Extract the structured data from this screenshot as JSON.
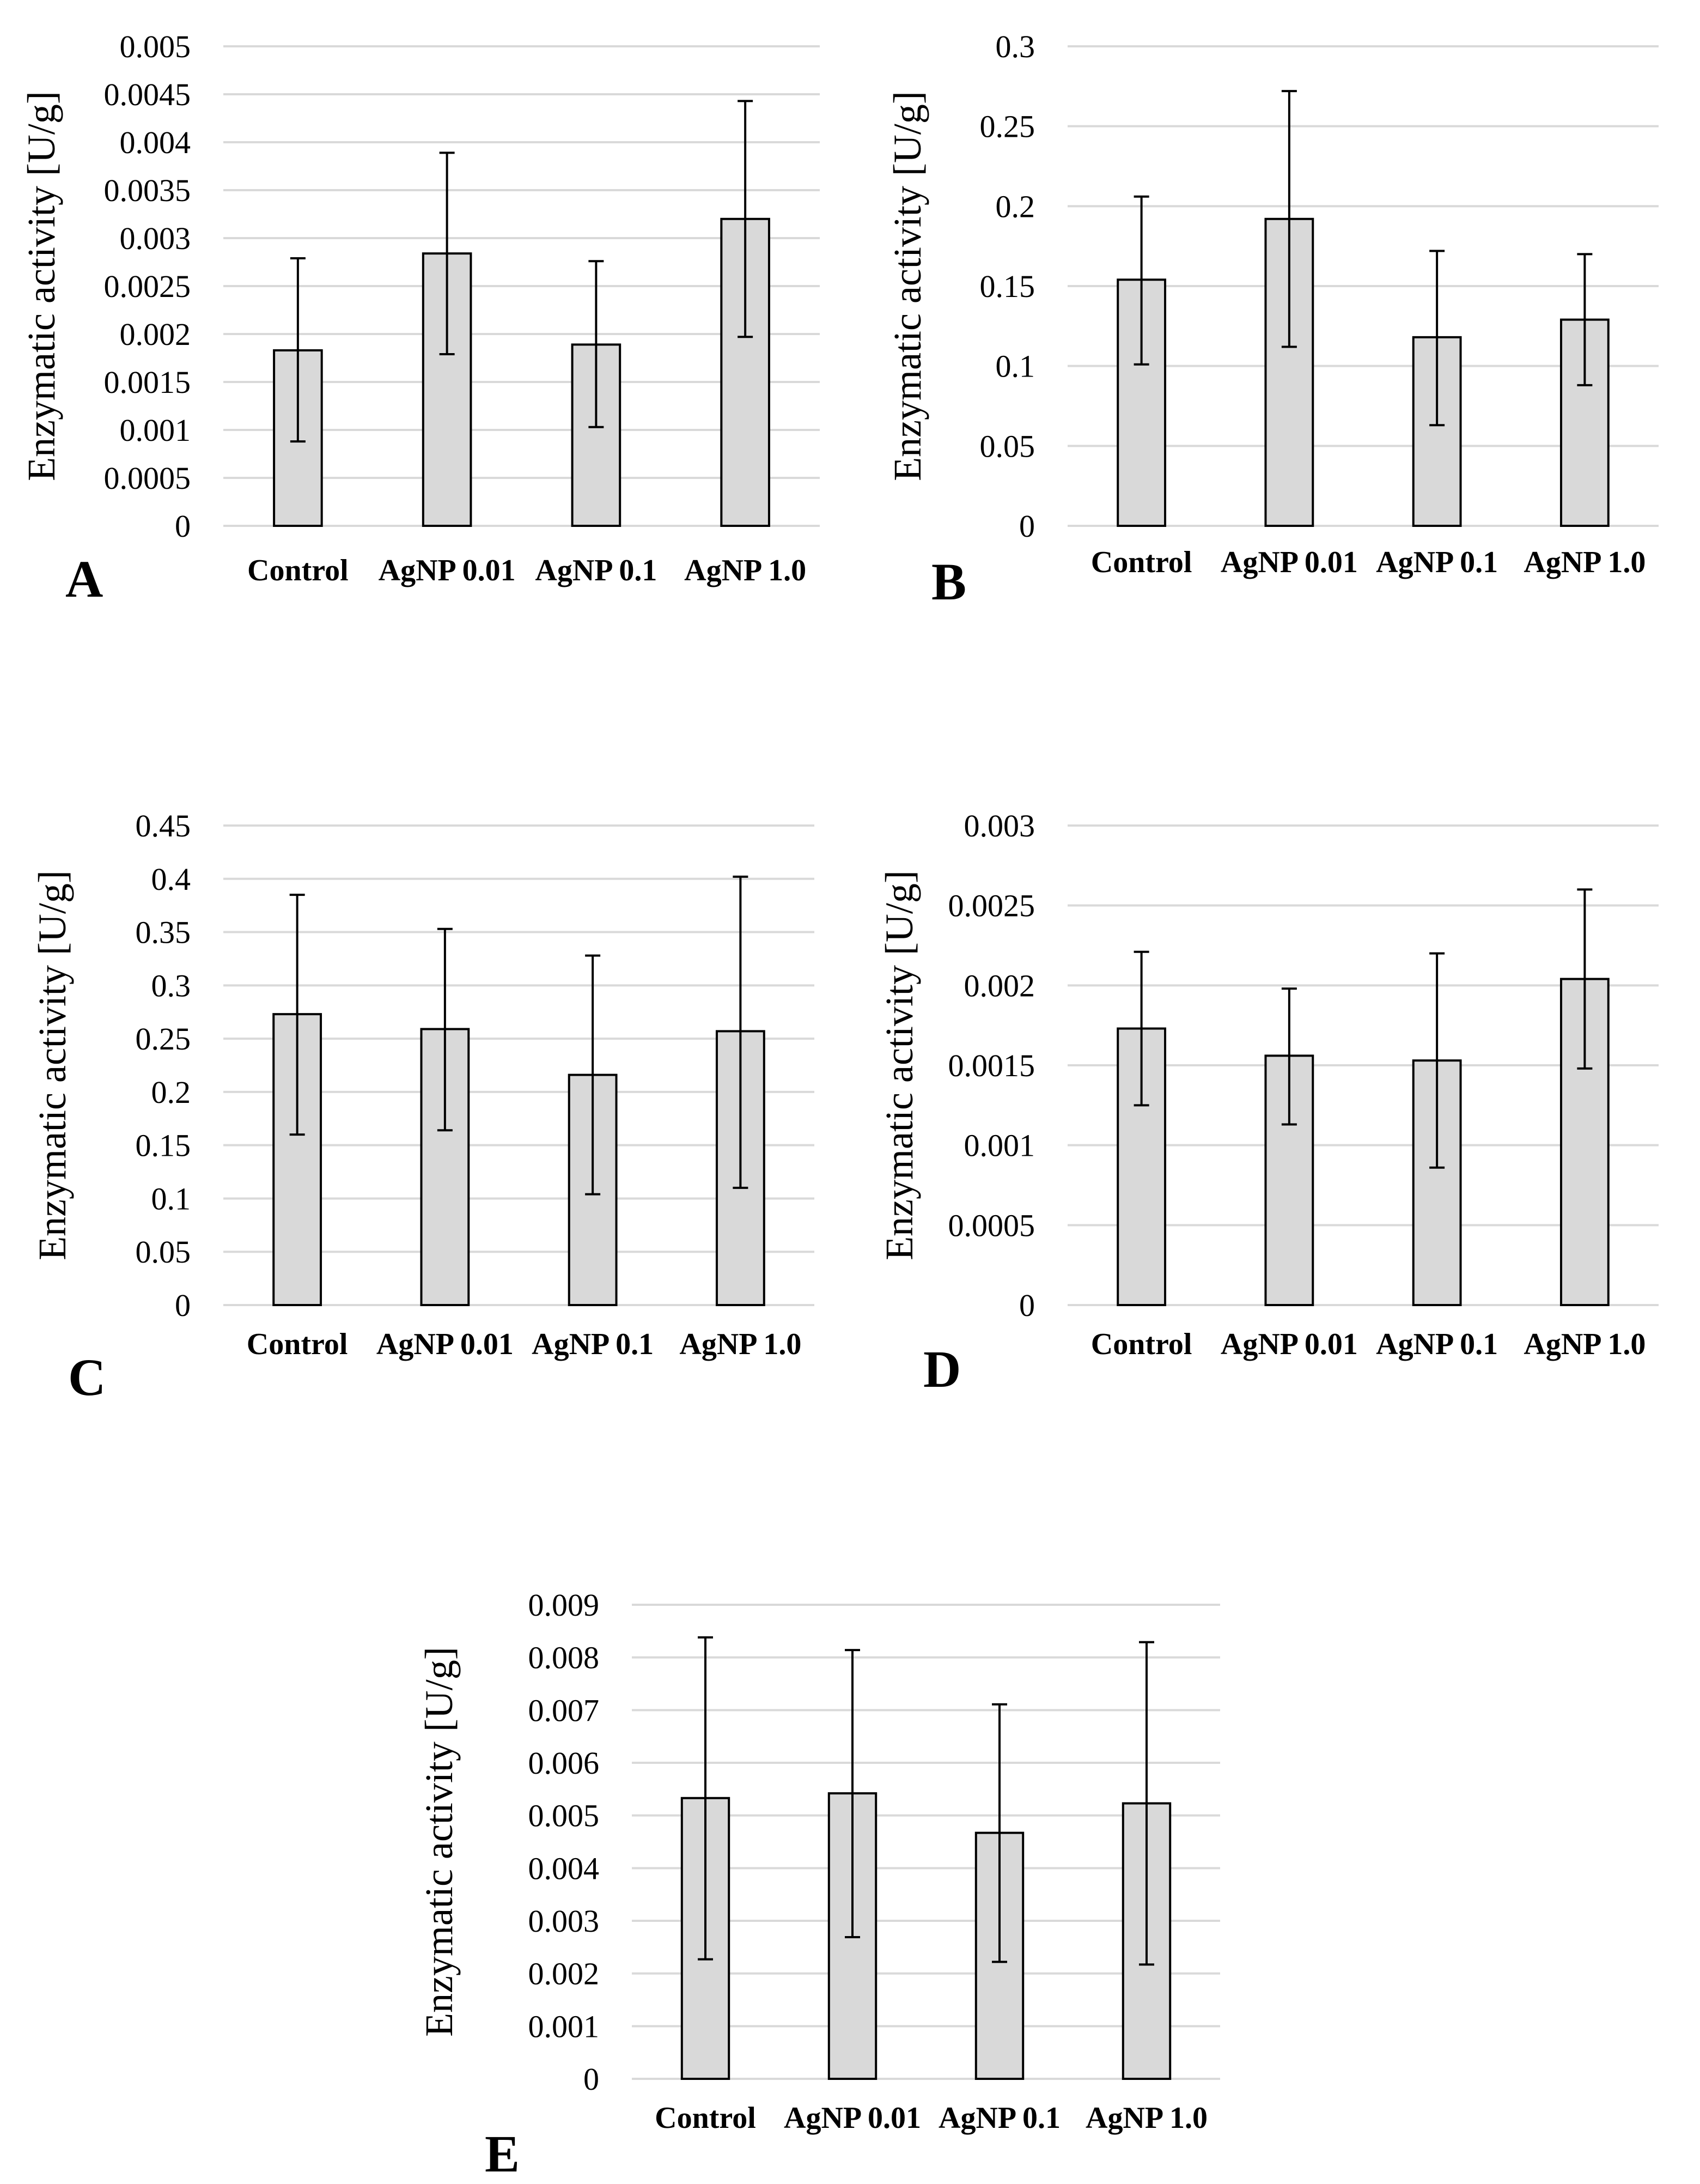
{
  "figure": {
    "bar_color": "#d9d9d9",
    "grid_color": "#d9d9d9",
    "edge_color": "#000000"
  },
  "chart_data": [
    {
      "panel": "A",
      "type": "bar",
      "categories": [
        "Control",
        "AgNP 0.01",
        "AgNP 0.1",
        "AgNP 1.0"
      ],
      "values": [
        0.00183,
        0.00284,
        0.00189,
        0.0032
      ],
      "error_low": [
        0.00088,
        0.00179,
        0.00103,
        0.00197
      ],
      "error_high": [
        0.00279,
        0.00389,
        0.00276,
        0.00443
      ],
      "ylabel": "Enzymatic activity [U/g]",
      "ylim": [
        0,
        0.005
      ],
      "yticks": [
        "0",
        "0.0005",
        "0.001",
        "0.0015",
        "0.002",
        "0.0025",
        "0.003",
        "0.0035",
        "0.004",
        "0.0045",
        "0.005"
      ],
      "grid": true
    },
    {
      "panel": "B",
      "type": "bar",
      "categories": [
        "Control",
        "AgNP 0.01",
        "AgNP 0.1",
        "AgNP 1.0"
      ],
      "values": [
        0.154,
        0.192,
        0.118,
        0.129
      ],
      "error_low": [
        0.101,
        0.112,
        0.063,
        0.088
      ],
      "error_high": [
        0.206,
        0.272,
        0.172,
        0.17
      ],
      "ylabel": "Enzymatic activity [U/g]",
      "ylim": [
        0,
        0.3
      ],
      "yticks": [
        "0",
        "0.05",
        "0.1",
        "0.15",
        "0.2",
        "0.25",
        "0.3"
      ],
      "grid": true
    },
    {
      "panel": "C",
      "type": "bar",
      "categories": [
        "Control",
        "AgNP 0.01",
        "AgNP 0.1",
        "AgNP 1.0"
      ],
      "values": [
        0.273,
        0.259,
        0.216,
        0.257
      ],
      "error_low": [
        0.16,
        0.164,
        0.104,
        0.11
      ],
      "error_high": [
        0.385,
        0.353,
        0.328,
        0.402
      ],
      "ylabel": "Enzymatic activity [U/g]",
      "ylim": [
        0,
        0.45
      ],
      "yticks": [
        "0",
        "0.05",
        "0.1",
        "0.15",
        "0.2",
        "0.25",
        "0.3",
        "0.35",
        "0.4",
        "0.45"
      ],
      "grid": true
    },
    {
      "panel": "D",
      "type": "bar",
      "categories": [
        "Control",
        "AgNP 0.01",
        "AgNP 0.1",
        "AgNP 1.0"
      ],
      "values": [
        0.00173,
        0.00156,
        0.00153,
        0.00204
      ],
      "error_low": [
        0.00125,
        0.00113,
        0.00086,
        0.00148
      ],
      "error_high": [
        0.00221,
        0.00198,
        0.0022,
        0.0026
      ],
      "ylabel": "Enzymatic activity [U/g]",
      "ylim": [
        0,
        0.003
      ],
      "yticks": [
        "0",
        "0.0005",
        "0.001",
        "0.0015",
        "0.002",
        "0.0025",
        "0.003"
      ],
      "grid": true
    },
    {
      "panel": "E",
      "type": "bar",
      "categories": [
        "Control",
        "AgNP 0.01",
        "AgNP 0.1",
        "AgNP 1.0"
      ],
      "values": [
        0.00533,
        0.00542,
        0.00467,
        0.00523
      ],
      "error_low": [
        0.00227,
        0.00269,
        0.00222,
        0.00217
      ],
      "error_high": [
        0.00838,
        0.00814,
        0.00711,
        0.00829
      ],
      "ylabel": "Enzymatic activity [U/g]",
      "ylim": [
        0,
        0.009
      ],
      "yticks": [
        "0",
        "0.001",
        "0.002",
        "0.003",
        "0.004",
        "0.005",
        "0.006",
        "0.007",
        "0.008",
        "0.009"
      ],
      "grid": true
    }
  ]
}
